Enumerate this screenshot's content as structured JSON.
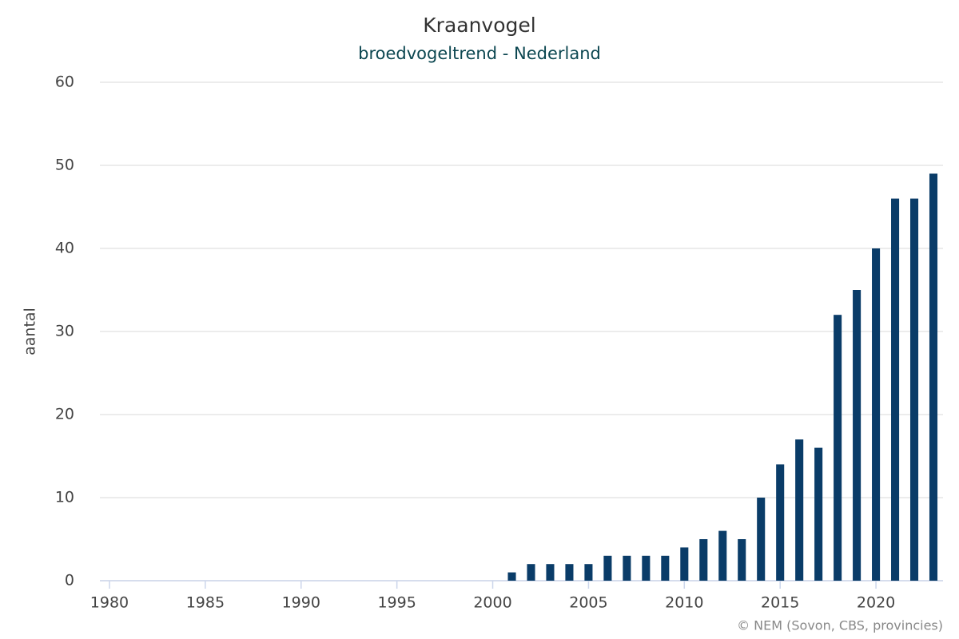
{
  "chart_data": {
    "type": "bar",
    "title": "Kraanvogel",
    "subtitle": "broedvogeltrend - Nederland",
    "y_label": "aantal",
    "credits": "© NEM (Sovon, CBS, provincies)",
    "x": [
      2001,
      2002,
      2003,
      2004,
      2005,
      2006,
      2007,
      2008,
      2009,
      2010,
      2011,
      2012,
      2013,
      2014,
      2015,
      2016,
      2017,
      2018,
      2019,
      2020,
      2021,
      2022,
      2023
    ],
    "values": [
      1,
      2,
      2,
      2,
      2,
      3,
      3,
      3,
      3,
      4,
      5,
      6,
      5,
      10,
      14,
      17,
      16,
      32,
      35,
      40,
      46,
      46,
      49
    ],
    "color": "#0a3c68",
    "xlim": [
      1979.5,
      2023.5
    ],
    "xticks": [
      1980,
      1985,
      1990,
      1995,
      2000,
      2005,
      2010,
      2015,
      2020
    ],
    "ylim": [
      0,
      60
    ],
    "yticks": [
      0,
      10,
      20,
      30,
      40,
      50,
      60
    ],
    "grid": true
  }
}
